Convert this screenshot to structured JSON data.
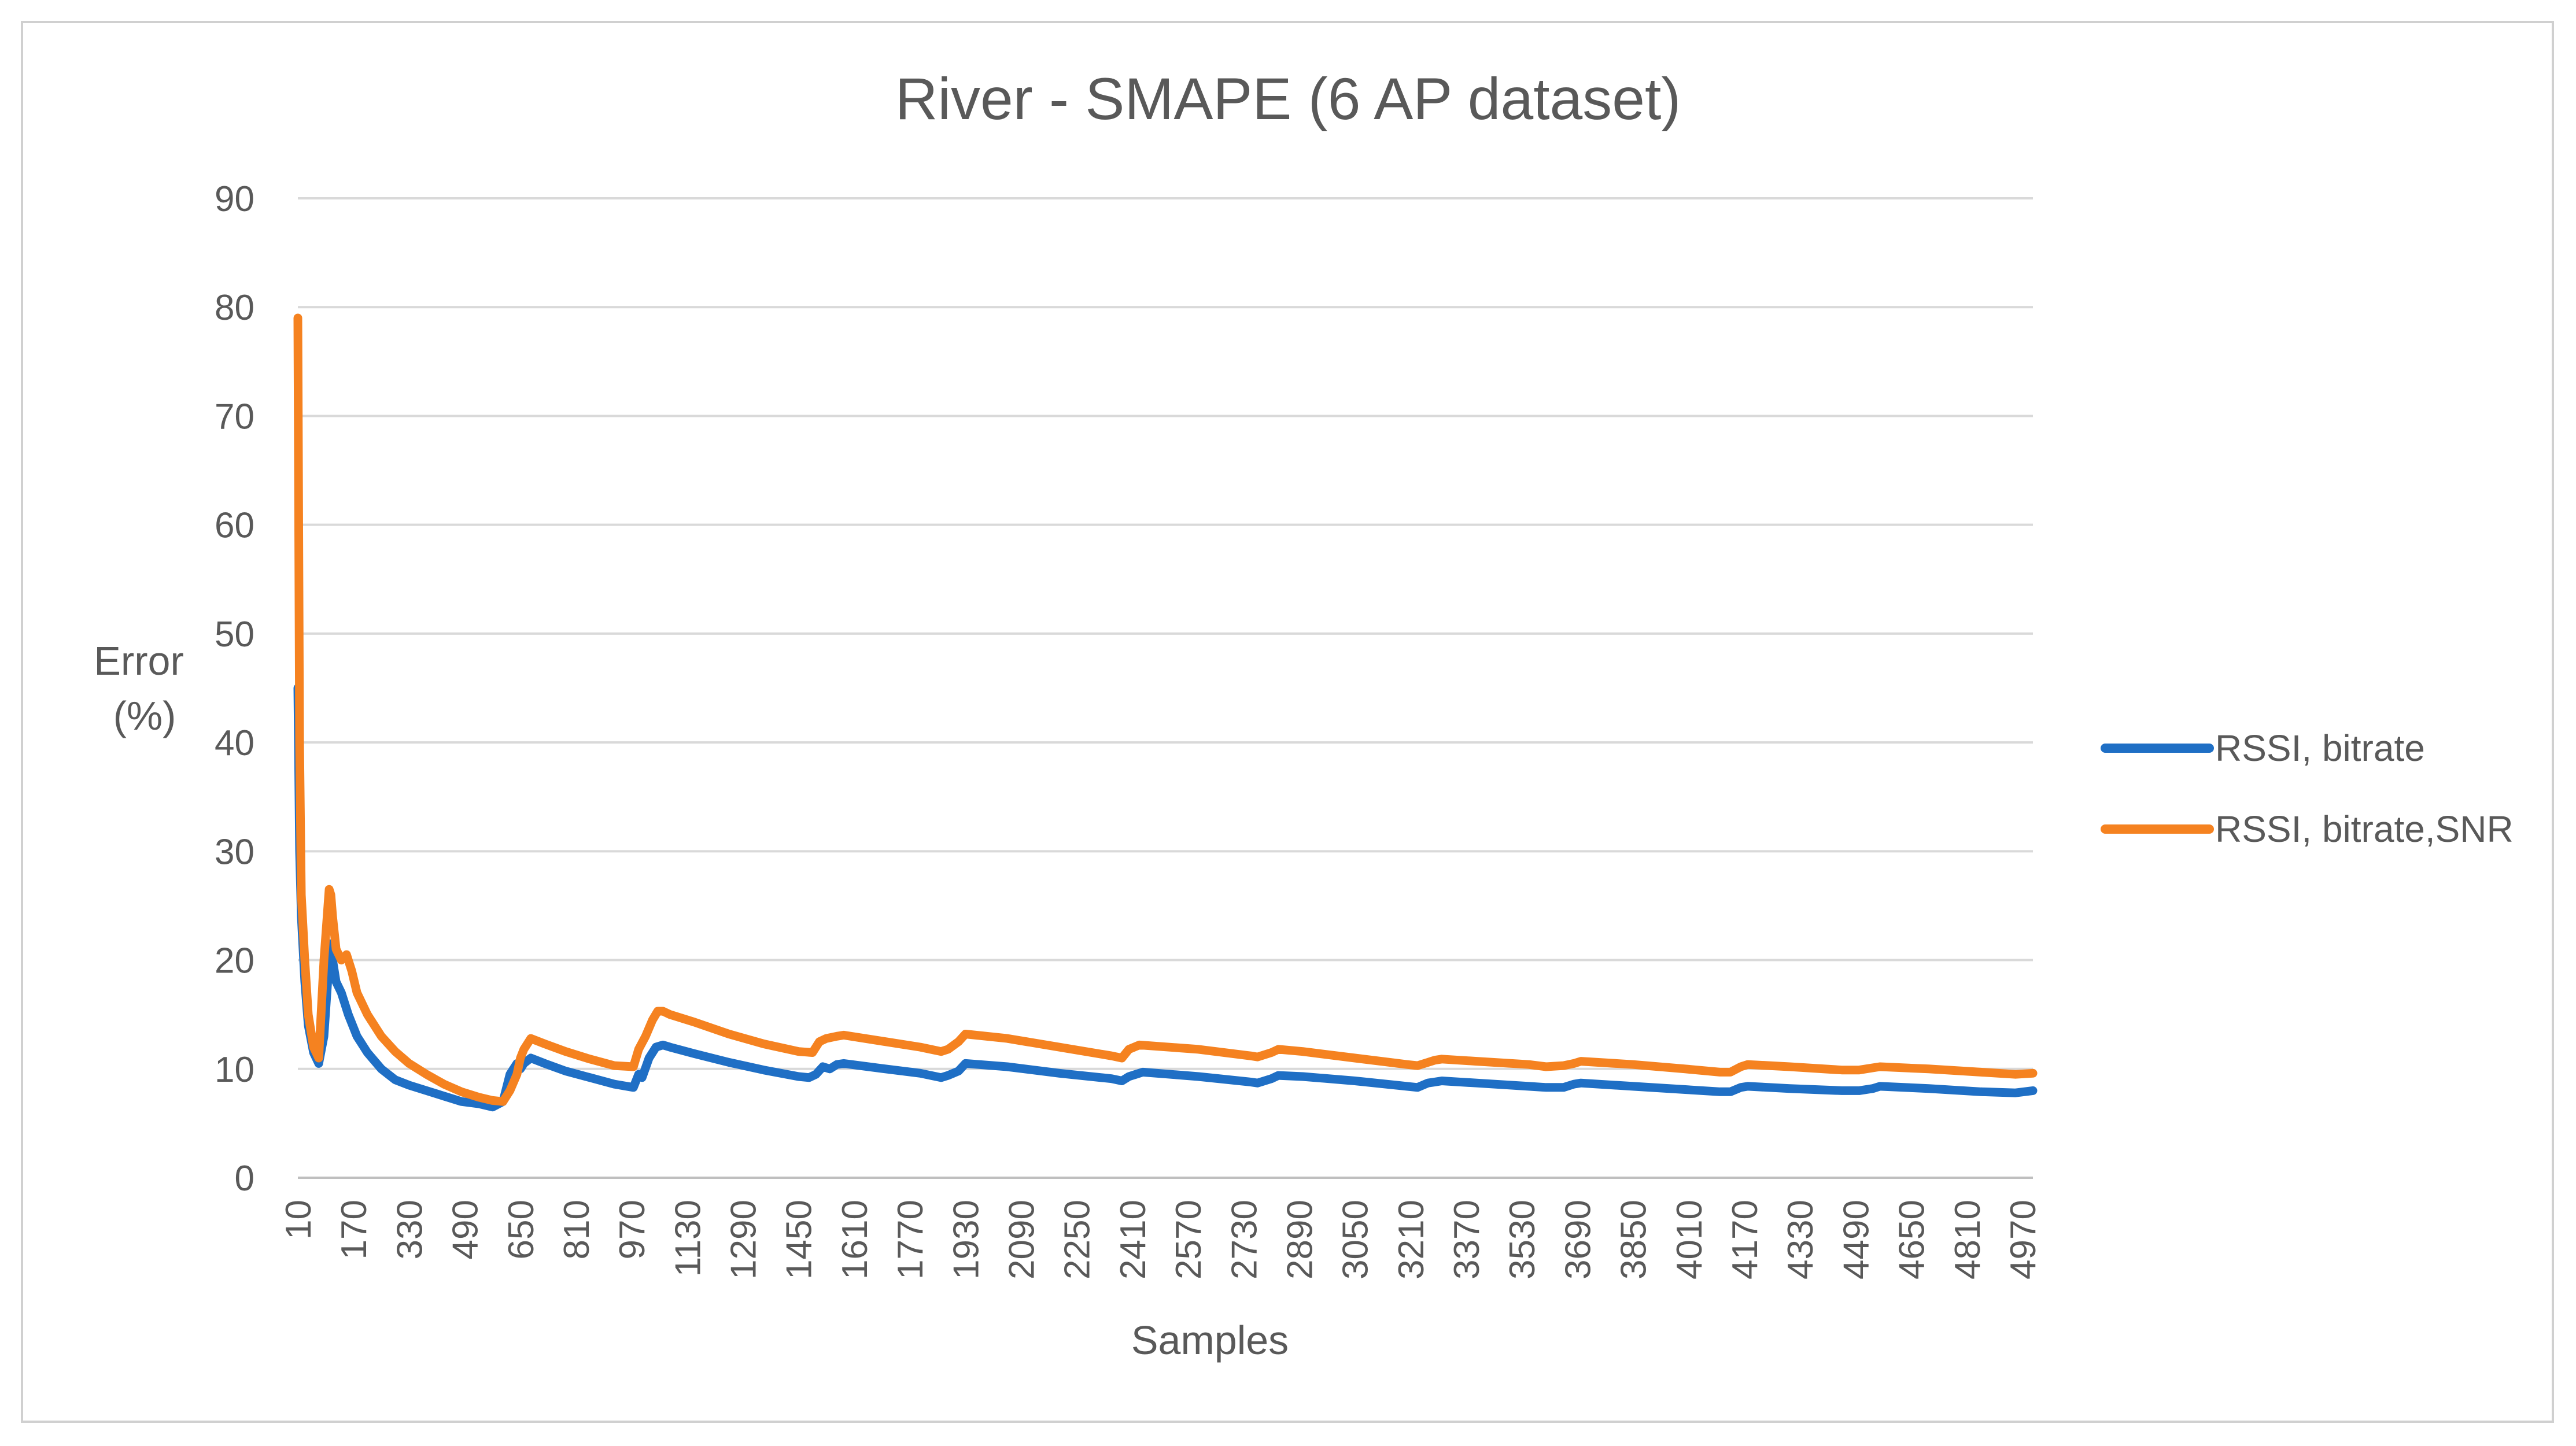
{
  "chart_data": {
    "type": "line",
    "title": "River - SMAPE (6 AP dataset)",
    "xlabel": "Samples",
    "ylabel": [
      "Error",
      "(%)"
    ],
    "ylim": [
      0,
      90
    ],
    "yticks": [
      0,
      10,
      20,
      30,
      40,
      50,
      60,
      70,
      80,
      90
    ],
    "xlim": [
      10,
      5000
    ],
    "xticks": [
      10,
      170,
      330,
      490,
      650,
      810,
      970,
      1130,
      1290,
      1450,
      1610,
      1770,
      1930,
      2090,
      2250,
      2410,
      2570,
      2730,
      2890,
      3050,
      3210,
      3370,
      3530,
      3690,
      3850,
      4010,
      4170,
      4330,
      4490,
      4650,
      4810,
      4970
    ],
    "grid": true,
    "legend_position": "right",
    "series": [
      {
        "name": "RSSI, bitrate",
        "color": "#1f6fc5",
        "x": [
          10,
          15,
          20,
          30,
          40,
          55,
          70,
          85,
          100,
          105,
          110,
          120,
          135,
          155,
          180,
          210,
          250,
          290,
          330,
          380,
          430,
          480,
          530,
          570,
          600,
          620,
          630,
          640,
          650,
          660,
          680,
          720,
          780,
          850,
          920,
          975,
          990,
          1000,
          1020,
          1040,
          1060,
          1080,
          1150,
          1250,
          1350,
          1450,
          1480,
          1500,
          1520,
          1540,
          1560,
          1580,
          1700,
          1800,
          1860,
          1880,
          1910,
          1930,
          2050,
          2200,
          2350,
          2380,
          2400,
          2420,
          2440,
          2600,
          2750,
          2770,
          2810,
          2830,
          2900,
          3050,
          3200,
          3230,
          3260,
          3280,
          3300,
          3400,
          3550,
          3600,
          3650,
          3680,
          3700,
          3850,
          4000,
          4100,
          4130,
          4160,
          4180,
          4300,
          4450,
          4500,
          4540,
          4560,
          4700,
          4850,
          4950,
          5000
        ],
        "values": [
          45,
          30,
          24,
          18,
          14,
          11.5,
          10.5,
          13,
          20,
          21.5,
          20,
          18,
          17,
          15,
          13,
          11.5,
          10,
          9,
          8.5,
          8,
          7.5,
          7,
          6.8,
          6.5,
          7,
          9.5,
          10,
          10.5,
          10,
          10.5,
          11,
          10.5,
          9.8,
          9.2,
          8.6,
          8.3,
          9.5,
          9.2,
          11,
          12,
          12.2,
          12,
          11.4,
          10.6,
          9.9,
          9.3,
          9.2,
          9.5,
          10.2,
          10,
          10.4,
          10.5,
          10,
          9.6,
          9.2,
          9.4,
          9.8,
          10.5,
          10.2,
          9.6,
          9.1,
          8.9,
          9.3,
          9.5,
          9.7,
          9.3,
          8.8,
          8.7,
          9.1,
          9.4,
          9.3,
          8.9,
          8.4,
          8.3,
          8.7,
          8.8,
          8.9,
          8.7,
          8.4,
          8.3,
          8.3,
          8.6,
          8.7,
          8.4,
          8.1,
          7.9,
          7.9,
          8.3,
          8.4,
          8.2,
          8.0,
          8.0,
          8.2,
          8.4,
          8.2,
          7.9,
          7.8,
          8.0
        ]
      },
      {
        "name": "RSSI, bitrate,SNR",
        "color": "#f58220",
        "x": [
          10,
          15,
          20,
          30,
          40,
          55,
          70,
          85,
          100,
          105,
          110,
          120,
          135,
          150,
          165,
          180,
          210,
          250,
          290,
          330,
          380,
          430,
          480,
          530,
          570,
          600,
          620,
          640,
          650,
          660,
          680,
          720,
          780,
          850,
          920,
          975,
          990,
          1010,
          1030,
          1045,
          1060,
          1080,
          1150,
          1250,
          1350,
          1450,
          1490,
          1510,
          1530,
          1560,
          1580,
          1700,
          1800,
          1860,
          1880,
          1910,
          1930,
          2050,
          2200,
          2350,
          2380,
          2400,
          2430,
          2600,
          2750,
          2770,
          2810,
          2830,
          2900,
          3050,
          3200,
          3230,
          3260,
          3280,
          3300,
          3400,
          3550,
          3600,
          3650,
          3680,
          3700,
          3850,
          4000,
          4100,
          4130,
          4160,
          4180,
          4300,
          4450,
          4500,
          4540,
          4560,
          4700,
          4850,
          4950,
          5000
        ],
        "values": [
          79,
          40,
          26,
          20,
          15,
          12,
          11,
          20,
          26.5,
          26,
          24,
          21,
          20,
          20.5,
          19,
          17,
          15,
          13,
          11.6,
          10.5,
          9.5,
          8.6,
          7.9,
          7.4,
          7.1,
          7.0,
          8.0,
          9.5,
          11,
          11.8,
          12.8,
          12.3,
          11.6,
          10.9,
          10.3,
          10.2,
          11.8,
          13,
          14.5,
          15.3,
          15.3,
          15,
          14.3,
          13.2,
          12.3,
          11.6,
          11.5,
          12.5,
          12.8,
          13,
          13.1,
          12.5,
          12.0,
          11.6,
          11.8,
          12.5,
          13.2,
          12.8,
          12.0,
          11.2,
          11.0,
          11.8,
          12.2,
          11.8,
          11.2,
          11.1,
          11.5,
          11.8,
          11.6,
          11.0,
          10.4,
          10.3,
          10.6,
          10.8,
          10.9,
          10.7,
          10.4,
          10.2,
          10.3,
          10.5,
          10.7,
          10.4,
          10.0,
          9.7,
          9.7,
          10.2,
          10.4,
          10.2,
          9.9,
          9.9,
          10.1,
          10.2,
          10.0,
          9.7,
          9.5,
          9.6
        ]
      }
    ]
  }
}
